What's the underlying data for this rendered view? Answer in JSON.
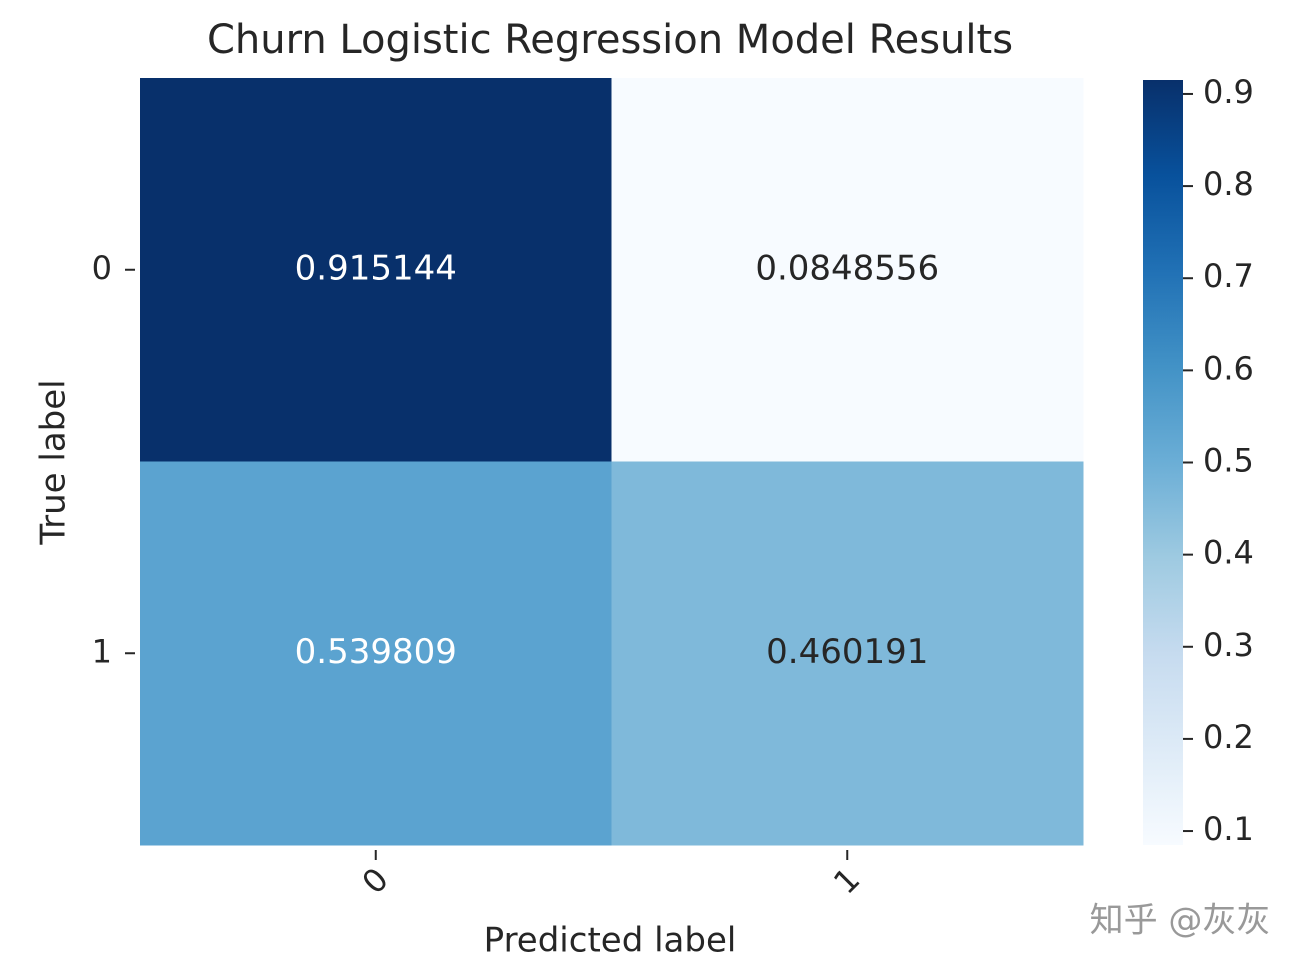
{
  "chart_data": {
    "type": "heatmap",
    "title": "Churn Logistic Regression Model Results",
    "x_label": "Predicted label",
    "y_label": "True label",
    "categories": [
      "0",
      "1"
    ],
    "y_categories": [
      "0",
      "1"
    ],
    "values": [
      [
        0.915144,
        0.0848556
      ],
      [
        0.539809,
        0.460191
      ]
    ],
    "colormap": "Blues",
    "clim": [
      0.0848556,
      0.915144
    ],
    "cticks": [
      0.1,
      0.2,
      0.3,
      0.4,
      0.5,
      0.6,
      0.7,
      0.8,
      0.9
    ],
    "watermark": "知乎 @灰灰"
  }
}
